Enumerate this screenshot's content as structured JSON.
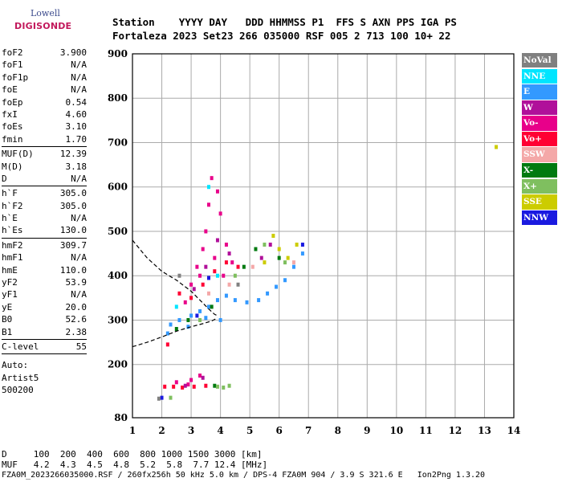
{
  "logo": {
    "line1": "Lowell",
    "line2": "DIGISONDE"
  },
  "header": {
    "line1": "Station    YYYY DAY   DDD HHMMSS P1  FFS S AXN PPS IGA PS",
    "line2": "Fortaleza 2023 Set23 266 035000 RSF 005 2 713 100 10+ 22"
  },
  "params": [
    {
      "name": "foF2",
      "value": "3.900"
    },
    {
      "name": "foF1",
      "value": "N/A"
    },
    {
      "name": "foF1p",
      "value": "N/A"
    },
    {
      "name": "foE",
      "value": "N/A"
    },
    {
      "name": "foEp",
      "value": "0.54"
    },
    {
      "name": "fxI",
      "value": "4.60"
    },
    {
      "name": "foEs",
      "value": "3.10"
    },
    {
      "name": "fmin",
      "value": "1.70"
    },
    {
      "sep": true
    },
    {
      "name": "MUF(D)",
      "value": "12.39"
    },
    {
      "name": "M(D)",
      "value": "3.18"
    },
    {
      "name": "D",
      "value": "N/A"
    },
    {
      "sep": true
    },
    {
      "name": "h`F",
      "value": "305.0"
    },
    {
      "name": "h`F2",
      "value": "305.0"
    },
    {
      "name": "h`E",
      "value": "N/A"
    },
    {
      "name": "h`Es",
      "value": "130.0"
    },
    {
      "sep": true
    },
    {
      "name": "hmF2",
      "value": "309.7"
    },
    {
      "name": "hmF1",
      "value": "N/A"
    },
    {
      "name": "hmE",
      "value": "110.0"
    },
    {
      "name": "yF2",
      "value": "53.9"
    },
    {
      "name": "yF1",
      "value": "N/A"
    },
    {
      "name": "yE",
      "value": "20.0"
    },
    {
      "name": "B0",
      "value": "52.6"
    },
    {
      "name": "B1",
      "value": "2.38"
    },
    {
      "sep": true
    },
    {
      "name": "C-level",
      "value": "55"
    },
    {
      "sep": true
    }
  ],
  "auto": {
    "line1": "Auto:",
    "line2": "Artist5",
    "line3": "500200"
  },
  "legend": [
    {
      "label": "NoVal",
      "bg": "#808080",
      "fg": "#ffffff"
    },
    {
      "label": "NNE",
      "bg": "#00e5ff",
      "fg": "#ffffff"
    },
    {
      "label": "E",
      "bg": "#3399ff",
      "fg": "#ffffff"
    },
    {
      "label": "W",
      "bg": "#b0109a",
      "fg": "#ffffff"
    },
    {
      "label": "Vo-",
      "bg": "#e8008a",
      "fg": "#ffffff"
    },
    {
      "label": "Vo+",
      "bg": "#ff0033",
      "fg": "#ffffff"
    },
    {
      "label": "SSW",
      "bg": "#f4a8a8",
      "fg": "#ffffff"
    },
    {
      "label": "X-",
      "bg": "#007a10",
      "fg": "#ffffff"
    },
    {
      "label": "X+",
      "bg": "#7fbf5f",
      "fg": "#ffffff"
    },
    {
      "label": "SSE",
      "bg": "#cccc00",
      "fg": "#ffffff"
    },
    {
      "label": "NNW",
      "bg": "#1a1ae0",
      "fg": "#ffffff"
    }
  ],
  "footer": {
    "line1": "D     100  200  400  600  800 1000 1500 3000 [km]",
    "line2": "MUF   4.2  4.3  4.5  4.8  5.2  5.8  7.7 12.4 [MHz]",
    "line3": "FZA0M_2023266035000.RSF / 260fx256h 50 kHz 5.0 km / DPS-4 FZA0M 904 / 3.9 S 321.6 E   Ion2Png 1.3.20"
  },
  "chart_data": {
    "type": "scatter",
    "title": "",
    "xlabel": "",
    "ylabel": "",
    "xlim": [
      1,
      14
    ],
    "ylim": [
      80,
      900
    ],
    "xticks": [
      1,
      2,
      3,
      4,
      5,
      6,
      7,
      8,
      9,
      10,
      11,
      12,
      13,
      14
    ],
    "yticks": [
      80,
      200,
      300,
      400,
      500,
      600,
      700,
      800,
      900
    ],
    "grid": true,
    "legend_position": "right",
    "series": [
      {
        "name": "E",
        "color": "#3399ff",
        "points": [
          [
            2.3,
            290
          ],
          [
            2.6,
            300
          ],
          [
            3.0,
            310
          ],
          [
            3.3,
            320
          ],
          [
            3.6,
            330
          ],
          [
            3.9,
            345
          ],
          [
            4.2,
            355
          ],
          [
            4.5,
            345
          ],
          [
            4.9,
            340
          ],
          [
            5.3,
            345
          ],
          [
            5.6,
            360
          ],
          [
            5.9,
            375
          ],
          [
            6.2,
            390
          ],
          [
            6.5,
            420
          ],
          [
            6.8,
            450
          ],
          [
            4.0,
            300
          ],
          [
            3.5,
            305
          ],
          [
            2.9,
            285
          ],
          [
            2.2,
            270
          ]
        ]
      },
      {
        "name": "Vo-",
        "color": "#e8008a",
        "points": [
          [
            2.8,
            340
          ],
          [
            3.0,
            380
          ],
          [
            3.2,
            420
          ],
          [
            3.4,
            460
          ],
          [
            3.5,
            500
          ],
          [
            3.6,
            560
          ],
          [
            3.7,
            620
          ],
          [
            3.9,
            590
          ],
          [
            4.0,
            540
          ],
          [
            4.2,
            470
          ],
          [
            4.4,
            430
          ],
          [
            3.3,
            400
          ],
          [
            3.8,
            440
          ],
          [
            4.1,
            400
          ],
          [
            2.5,
            160
          ],
          [
            3.0,
            165
          ],
          [
            3.3,
            175
          ],
          [
            2.9,
            155
          ]
        ]
      },
      {
        "name": "Vo+",
        "color": "#ff0033",
        "points": [
          [
            2.6,
            360
          ],
          [
            3.0,
            350
          ],
          [
            3.4,
            380
          ],
          [
            3.8,
            410
          ],
          [
            4.2,
            430
          ],
          [
            4.6,
            420
          ],
          [
            2.1,
            150
          ],
          [
            2.4,
            150
          ],
          [
            2.7,
            148
          ],
          [
            3.1,
            150
          ],
          [
            3.5,
            152
          ],
          [
            2.2,
            245
          ]
        ]
      },
      {
        "name": "W",
        "color": "#b0109a",
        "points": [
          [
            3.1,
            370
          ],
          [
            3.5,
            420
          ],
          [
            3.9,
            480
          ],
          [
            4.3,
            450
          ],
          [
            5.4,
            440
          ],
          [
            5.7,
            470
          ],
          [
            3.4,
            170
          ],
          [
            2.8,
            152
          ]
        ]
      },
      {
        "name": "X-",
        "color": "#007a10",
        "points": [
          [
            2.5,
            280
          ],
          [
            2.9,
            300
          ],
          [
            3.7,
            330
          ],
          [
            4.8,
            420
          ],
          [
            5.2,
            460
          ],
          [
            6.0,
            440
          ],
          [
            3.8,
            152
          ]
        ]
      },
      {
        "name": "X+",
        "color": "#7fbf5f",
        "points": [
          [
            3.3,
            300
          ],
          [
            4.5,
            400
          ],
          [
            5.5,
            470
          ],
          [
            6.2,
            430
          ],
          [
            3.9,
            150
          ],
          [
            4.1,
            148
          ],
          [
            4.3,
            152
          ],
          [
            2.3,
            125
          ]
        ]
      },
      {
        "name": "SSE",
        "color": "#cccc00",
        "points": [
          [
            5.5,
            430
          ],
          [
            5.8,
            490
          ],
          [
            6.0,
            460
          ],
          [
            6.3,
            440
          ],
          [
            6.6,
            470
          ],
          [
            13.4,
            690
          ]
        ]
      },
      {
        "name": "SSW",
        "color": "#f4a8a8",
        "points": [
          [
            3.6,
            360
          ],
          [
            4.3,
            380
          ],
          [
            5.1,
            420
          ],
          [
            6.5,
            430
          ]
        ]
      },
      {
        "name": "NNE",
        "color": "#00e5ff",
        "points": [
          [
            3.6,
            600
          ],
          [
            2.5,
            330
          ],
          [
            3.9,
            400
          ]
        ]
      },
      {
        "name": "NNW",
        "color": "#1a1ae0",
        "points": [
          [
            2.0,
            125
          ],
          [
            3.2,
            310
          ],
          [
            3.6,
            395
          ],
          [
            6.8,
            470
          ]
        ]
      },
      {
        "name": "NoVal",
        "color": "#808080",
        "points": [
          [
            2.6,
            400
          ],
          [
            4.6,
            380
          ],
          [
            1.9,
            123
          ]
        ]
      }
    ],
    "profile": [
      [
        1.0,
        480
      ],
      [
        1.5,
        440
      ],
      [
        2.0,
        410
      ],
      [
        2.5,
        390
      ],
      [
        3.0,
        365
      ],
      [
        3.3,
        345
      ],
      [
        3.6,
        325
      ],
      [
        3.8,
        313
      ],
      [
        3.9,
        310
      ]
    ],
    "trace": [
      [
        1.0,
        240
      ],
      [
        1.5,
        250
      ],
      [
        2.0,
        262
      ],
      [
        2.5,
        275
      ],
      [
        3.0,
        285
      ],
      [
        3.4,
        292
      ],
      [
        3.7,
        298
      ],
      [
        3.9,
        305
      ]
    ]
  }
}
